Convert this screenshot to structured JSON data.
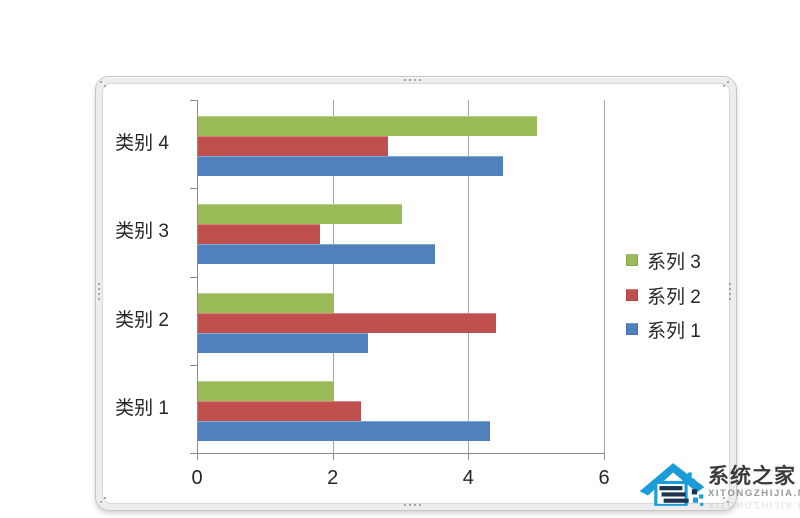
{
  "chart_data": {
    "type": "bar",
    "orientation": "horizontal",
    "title": "",
    "xlabel": "",
    "ylabel": "",
    "categories": [
      "类别 1",
      "类别 2",
      "类别 3",
      "类别 4"
    ],
    "series": [
      {
        "name": "系列 1",
        "color": "#4F81BD",
        "values": [
          4.3,
          2.5,
          3.5,
          4.5
        ]
      },
      {
        "name": "系列 2",
        "color": "#C0504D",
        "values": [
          2.4,
          4.4,
          1.8,
          2.8
        ]
      },
      {
        "name": "系列 3",
        "color": "#9BBB59",
        "values": [
          2.0,
          2.0,
          3.0,
          5.0
        ]
      }
    ],
    "x_axis": {
      "min": 0,
      "max": 6,
      "ticks": [
        0,
        2,
        4,
        6
      ]
    },
    "gridlines": true,
    "legend": {
      "position": "right",
      "entries": [
        {
          "label": "系列 3",
          "color": "#9BBB59"
        },
        {
          "label": "系列 2",
          "color": "#C0504D"
        },
        {
          "label": "系列 1",
          "color": "#4F81BD"
        }
      ]
    }
  },
  "watermark": {
    "brand": "系统之家",
    "site": "XITONGZHIJIA.NET",
    "brand_blue": "#1B9CD9",
    "brand_navy": "#1D3450"
  },
  "frame_colors": {
    "border": "#c6c6c6",
    "fill": "#ededed",
    "gridline": "#a6a6a6",
    "axis": "#8c8c8c",
    "text": "#262626"
  }
}
